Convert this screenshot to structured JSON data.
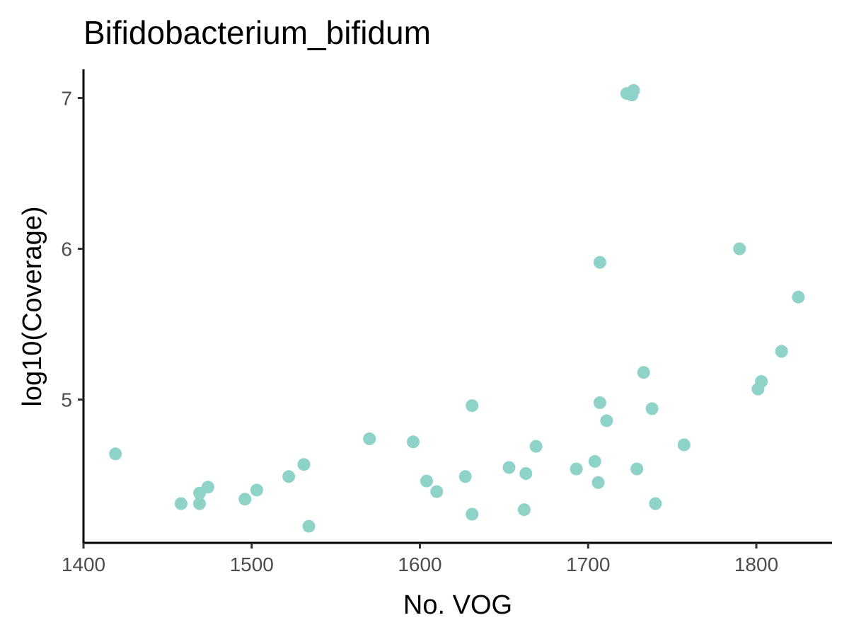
{
  "chart_data": {
    "type": "scatter",
    "title": "Bifidobacterium_bifidum",
    "xlabel": "No. VOG",
    "ylabel": "log10(Coverage)",
    "xlim": [
      1400,
      1845
    ],
    "ylim": [
      4.05,
      7.19
    ],
    "xticks": [
      1400,
      1500,
      1600,
      1700,
      1800
    ],
    "yticks": [
      5,
      6,
      7
    ],
    "grid": false,
    "legend": "none",
    "point_color": "#8dd3c7",
    "points": [
      {
        "x": 1419,
        "y": 4.64
      },
      {
        "x": 1458,
        "y": 4.31
      },
      {
        "x": 1469,
        "y": 4.31
      },
      {
        "x": 1469,
        "y": 4.38
      },
      {
        "x": 1474,
        "y": 4.42
      },
      {
        "x": 1496,
        "y": 4.34
      },
      {
        "x": 1503,
        "y": 4.4
      },
      {
        "x": 1522,
        "y": 4.49
      },
      {
        "x": 1531,
        "y": 4.57
      },
      {
        "x": 1534,
        "y": 4.16
      },
      {
        "x": 1570,
        "y": 4.74
      },
      {
        "x": 1596,
        "y": 4.72
      },
      {
        "x": 1604,
        "y": 4.46
      },
      {
        "x": 1610,
        "y": 4.39
      },
      {
        "x": 1627,
        "y": 4.49
      },
      {
        "x": 1631,
        "y": 4.96
      },
      {
        "x": 1631,
        "y": 4.24
      },
      {
        "x": 1653,
        "y": 4.55
      },
      {
        "x": 1662,
        "y": 4.27
      },
      {
        "x": 1663,
        "y": 4.51
      },
      {
        "x": 1669,
        "y": 4.69
      },
      {
        "x": 1693,
        "y": 4.54
      },
      {
        "x": 1704,
        "y": 4.59
      },
      {
        "x": 1706,
        "y": 4.45
      },
      {
        "x": 1707,
        "y": 5.91
      },
      {
        "x": 1707,
        "y": 4.98
      },
      {
        "x": 1711,
        "y": 4.86
      },
      {
        "x": 1723,
        "y": 7.03
      },
      {
        "x": 1726,
        "y": 7.02
      },
      {
        "x": 1727,
        "y": 7.05
      },
      {
        "x": 1729,
        "y": 4.54
      },
      {
        "x": 1733,
        "y": 5.18
      },
      {
        "x": 1738,
        "y": 4.94
      },
      {
        "x": 1740,
        "y": 4.31
      },
      {
        "x": 1757,
        "y": 4.7
      },
      {
        "x": 1790,
        "y": 6.0
      },
      {
        "x": 1801,
        "y": 5.07
      },
      {
        "x": 1803,
        "y": 5.12
      },
      {
        "x": 1815,
        "y": 5.32
      },
      {
        "x": 1825,
        "y": 5.68
      }
    ]
  }
}
